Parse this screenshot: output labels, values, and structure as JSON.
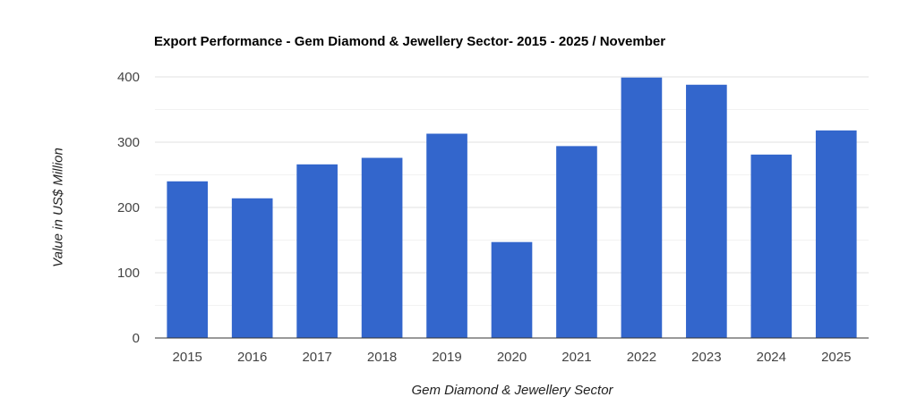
{
  "chart_data": {
    "type": "bar",
    "title": "Export Performance - Gem Diamond & Jewellery Sector- 2015 - 2025 / November",
    "xlabel": "Gem Diamond & Jewellery Sector",
    "ylabel": "Value in US$ Million",
    "categories": [
      "2015",
      "2016",
      "2017",
      "2018",
      "2019",
      "2020",
      "2021",
      "2022",
      "2023",
      "2024",
      "2025"
    ],
    "values": [
      240,
      214,
      266,
      276,
      313,
      147,
      294,
      399,
      388,
      281,
      318
    ],
    "ylim": [
      0,
      400
    ],
    "yticks": [
      0,
      100,
      200,
      300,
      400
    ],
    "grid": true,
    "legend": "none",
    "colors": {
      "bar": "#3366cc",
      "grid": "#e0e0e0",
      "axis": "#333333"
    }
  }
}
